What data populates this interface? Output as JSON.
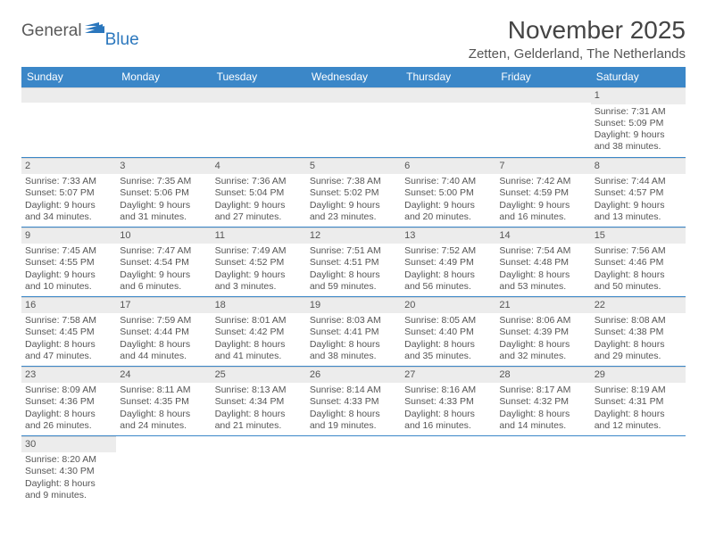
{
  "logo": {
    "word1": "General",
    "word2": "Blue",
    "flag_color": "#2b77bd"
  },
  "title": "November 2025",
  "location": "Zetten, Gelderland, The Netherlands",
  "headers": [
    "Sunday",
    "Monday",
    "Tuesday",
    "Wednesday",
    "Thursday",
    "Friday",
    "Saturday"
  ],
  "header_bg": "#3b87c8",
  "header_fg": "#ffffff",
  "daynum_bg": "#ececec",
  "cell_border": "#3b87c8",
  "text_color": "#555555",
  "weeks": [
    [
      null,
      null,
      null,
      null,
      null,
      null,
      {
        "n": "1",
        "sr": "7:31 AM",
        "ss": "5:09 PM",
        "dl": "9 hours and 38 minutes."
      }
    ],
    [
      {
        "n": "2",
        "sr": "7:33 AM",
        "ss": "5:07 PM",
        "dl": "9 hours and 34 minutes."
      },
      {
        "n": "3",
        "sr": "7:35 AM",
        "ss": "5:06 PM",
        "dl": "9 hours and 31 minutes."
      },
      {
        "n": "4",
        "sr": "7:36 AM",
        "ss": "5:04 PM",
        "dl": "9 hours and 27 minutes."
      },
      {
        "n": "5",
        "sr": "7:38 AM",
        "ss": "5:02 PM",
        "dl": "9 hours and 23 minutes."
      },
      {
        "n": "6",
        "sr": "7:40 AM",
        "ss": "5:00 PM",
        "dl": "9 hours and 20 minutes."
      },
      {
        "n": "7",
        "sr": "7:42 AM",
        "ss": "4:59 PM",
        "dl": "9 hours and 16 minutes."
      },
      {
        "n": "8",
        "sr": "7:44 AM",
        "ss": "4:57 PM",
        "dl": "9 hours and 13 minutes."
      }
    ],
    [
      {
        "n": "9",
        "sr": "7:45 AM",
        "ss": "4:55 PM",
        "dl": "9 hours and 10 minutes."
      },
      {
        "n": "10",
        "sr": "7:47 AM",
        "ss": "4:54 PM",
        "dl": "9 hours and 6 minutes."
      },
      {
        "n": "11",
        "sr": "7:49 AM",
        "ss": "4:52 PM",
        "dl": "9 hours and 3 minutes."
      },
      {
        "n": "12",
        "sr": "7:51 AM",
        "ss": "4:51 PM",
        "dl": "8 hours and 59 minutes."
      },
      {
        "n": "13",
        "sr": "7:52 AM",
        "ss": "4:49 PM",
        "dl": "8 hours and 56 minutes."
      },
      {
        "n": "14",
        "sr": "7:54 AM",
        "ss": "4:48 PM",
        "dl": "8 hours and 53 minutes."
      },
      {
        "n": "15",
        "sr": "7:56 AM",
        "ss": "4:46 PM",
        "dl": "8 hours and 50 minutes."
      }
    ],
    [
      {
        "n": "16",
        "sr": "7:58 AM",
        "ss": "4:45 PM",
        "dl": "8 hours and 47 minutes."
      },
      {
        "n": "17",
        "sr": "7:59 AM",
        "ss": "4:44 PM",
        "dl": "8 hours and 44 minutes."
      },
      {
        "n": "18",
        "sr": "8:01 AM",
        "ss": "4:42 PM",
        "dl": "8 hours and 41 minutes."
      },
      {
        "n": "19",
        "sr": "8:03 AM",
        "ss": "4:41 PM",
        "dl": "8 hours and 38 minutes."
      },
      {
        "n": "20",
        "sr": "8:05 AM",
        "ss": "4:40 PM",
        "dl": "8 hours and 35 minutes."
      },
      {
        "n": "21",
        "sr": "8:06 AM",
        "ss": "4:39 PM",
        "dl": "8 hours and 32 minutes."
      },
      {
        "n": "22",
        "sr": "8:08 AM",
        "ss": "4:38 PM",
        "dl": "8 hours and 29 minutes."
      }
    ],
    [
      {
        "n": "23",
        "sr": "8:09 AM",
        "ss": "4:36 PM",
        "dl": "8 hours and 26 minutes."
      },
      {
        "n": "24",
        "sr": "8:11 AM",
        "ss": "4:35 PM",
        "dl": "8 hours and 24 minutes."
      },
      {
        "n": "25",
        "sr": "8:13 AM",
        "ss": "4:34 PM",
        "dl": "8 hours and 21 minutes."
      },
      {
        "n": "26",
        "sr": "8:14 AM",
        "ss": "4:33 PM",
        "dl": "8 hours and 19 minutes."
      },
      {
        "n": "27",
        "sr": "8:16 AM",
        "ss": "4:33 PM",
        "dl": "8 hours and 16 minutes."
      },
      {
        "n": "28",
        "sr": "8:17 AM",
        "ss": "4:32 PM",
        "dl": "8 hours and 14 minutes."
      },
      {
        "n": "29",
        "sr": "8:19 AM",
        "ss": "4:31 PM",
        "dl": "8 hours and 12 minutes."
      }
    ],
    [
      {
        "n": "30",
        "sr": "8:20 AM",
        "ss": "4:30 PM",
        "dl": "8 hours and 9 minutes."
      },
      null,
      null,
      null,
      null,
      null,
      null
    ]
  ],
  "labels": {
    "sunrise": "Sunrise: ",
    "sunset": "Sunset: ",
    "daylight": "Daylight: "
  }
}
